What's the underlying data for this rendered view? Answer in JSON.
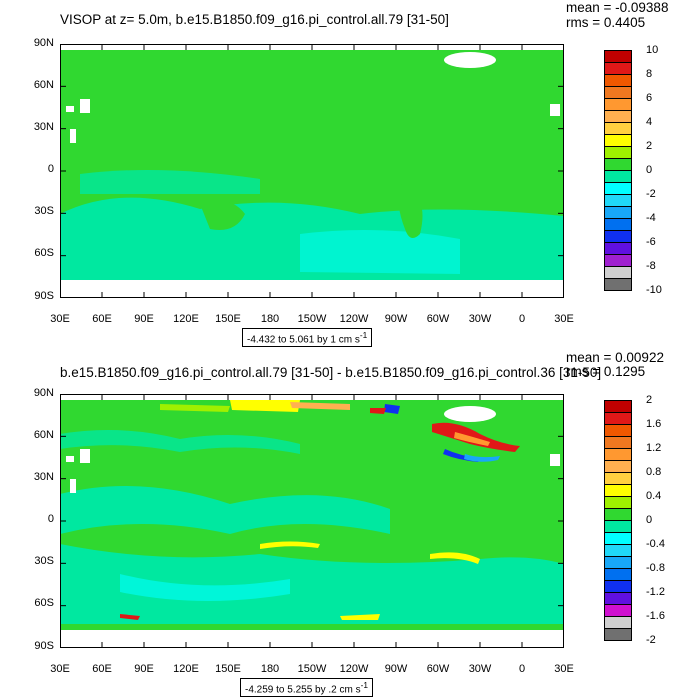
{
  "chart_data": [
    {
      "type": "heatmap",
      "title": "VISOP at z=   5.0m, b.e15.B1850.f09_g16.pi_control.all.79 [31-50]",
      "stats": {
        "mean": "mean = -0.09388",
        "rms": "rms = 0.4405"
      },
      "y_tick_labels": [
        "90N",
        "60N",
        "30N",
        "0",
        "30S",
        "60S",
        "90S"
      ],
      "x_tick_labels": [
        "30E",
        "60E",
        "90E",
        "120E",
        "150E",
        "180",
        "150W",
        "120W",
        "90W",
        "60W",
        "30W",
        "0",
        "30E"
      ],
      "range_text": "-4.432 to 5.061 by 1 cm s",
      "range_unit_sup": "-1",
      "colorbar_labels": [
        "10",
        "8",
        "6",
        "4",
        "2",
        "0",
        "-2",
        "-4",
        "-6",
        "-8",
        "-10"
      ],
      "colors": [
        "#C00000",
        "#E01818",
        "#F05800",
        "#F07820",
        "#FF9830",
        "#FFB050",
        "#FFD040",
        "#FFFF00",
        "#A0F000",
        "#30D830",
        "#00E8A0",
        "#00FFFF",
        "#20D8F8",
        "#18A8F8",
        "#0070F0",
        "#1030F0",
        "#6010E0",
        "#A020D0",
        "#D0D0D0",
        "#707070"
      ]
    },
    {
      "type": "heatmap",
      "title": "b.e15.B1850.f09_g16.pi_control.all.79 [31-50] - b.e15.B1850.f09_g16.pi_control.36 [31-50]",
      "stats": {
        "mean": "mean = 0.00922",
        "rms": "rms = 0.1295"
      },
      "y_tick_labels": [
        "90N",
        "60N",
        "30N",
        "0",
        "30S",
        "60S",
        "90S"
      ],
      "x_tick_labels": [
        "30E",
        "60E",
        "90E",
        "120E",
        "150E",
        "180",
        "150W",
        "120W",
        "90W",
        "60W",
        "30W",
        "0",
        "30E"
      ],
      "range_text": "-4.259 to 5.255 by .2 cm s",
      "range_unit_sup": "-1",
      "colorbar_labels": [
        "2",
        "1.6",
        "1.2",
        "0.8",
        "0.4",
        "0",
        "-0.4",
        "-0.8",
        "-1.2",
        "-1.6",
        "-2"
      ],
      "colors": [
        "#C00000",
        "#E01818",
        "#F05800",
        "#F07820",
        "#FF9830",
        "#FFB050",
        "#FFD040",
        "#FFFF00",
        "#A0F000",
        "#30D830",
        "#00E8A0",
        "#00FFFF",
        "#20D8F8",
        "#18A8F8",
        "#0070F0",
        "#1030F0",
        "#6010E0",
        "#D010D0",
        "#D0D0D0",
        "#707070"
      ]
    }
  ]
}
